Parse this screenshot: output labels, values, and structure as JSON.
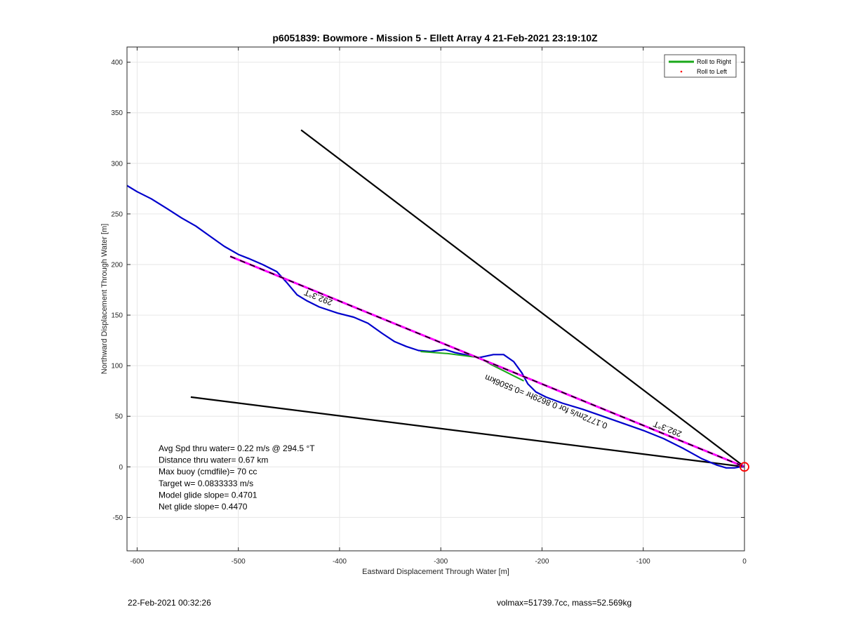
{
  "chart_data": {
    "type": "line",
    "title": "p6051839: Bowmore - Mission 5 - Ellett Array 4 21-Feb-2021 23:19:10Z",
    "xlabel": "Eastward Displacement Through Water [m]",
    "ylabel": "Northward Displacement Through Water [m]",
    "xlim": [
      -610,
      0
    ],
    "ylim": [
      -83,
      415
    ],
    "xticks": [
      -600,
      -500,
      -400,
      -300,
      -200,
      -100,
      0
    ],
    "yticks": [
      -50,
      0,
      50,
      100,
      150,
      200,
      250,
      300,
      350,
      400
    ],
    "grid": true,
    "legend_position": "top-right",
    "legend": [
      {
        "label": "Roll to Right",
        "color": "#1aa81a",
        "style": "line"
      },
      {
        "label": "Roll to Left",
        "color": "#ff0000",
        "style": "marker"
      }
    ],
    "series": [
      {
        "name": "Roll to Right",
        "color": "#1aa81a",
        "x": [
          -320,
          -293,
          -262,
          -250,
          -218
        ],
        "y": [
          114,
          112,
          108,
          101,
          85
        ]
      },
      {
        "color": "#0000cc",
        "x": [
          -610,
          -600,
          -586,
          -570,
          -556,
          -542,
          -528,
          -514,
          -500,
          -490,
          -476,
          -462,
          -452,
          -442,
          -432,
          -420,
          -402,
          -386,
          -372,
          -358,
          -346,
          -334,
          -322,
          -310,
          -296,
          -286,
          -272,
          -262,
          -248,
          -238,
          -228,
          -220,
          -214,
          -206,
          -196,
          -180,
          -160,
          -140,
          -120,
          -100,
          -80,
          -60,
          -42,
          -28,
          -18,
          -10,
          -4,
          0
        ],
        "y": [
          278,
          272,
          265,
          255,
          246,
          238,
          228,
          218,
          210,
          206,
          200,
          193,
          182,
          170,
          164,
          158,
          152,
          148,
          142,
          132,
          124,
          119,
          115,
          114,
          116,
          113,
          110,
          108,
          111,
          111,
          104,
          93,
          82,
          74,
          69,
          63,
          57,
          50,
          43,
          36,
          28,
          18,
          8,
          2,
          -1,
          -1,
          0,
          0
        ]
      }
    ],
    "reference_lines": [
      {
        "color": "#ff00ff",
        "dashed_black": true,
        "x": [
          -508,
          0
        ],
        "y": [
          208,
          0
        ]
      },
      {
        "color": "#000000",
        "x": [
          -438,
          0
        ],
        "y": [
          333,
          0
        ]
      },
      {
        "color": "#000000",
        "x": [
          -547,
          0
        ],
        "y": [
          69,
          0
        ]
      }
    ],
    "end_marker": {
      "x": 0,
      "y": 0,
      "color": "#ff0000"
    },
    "line_labels": [
      {
        "text": "292.3°T",
        "x": -420,
        "y": 170,
        "rotate": 22
      },
      {
        "text": "292.3°T",
        "x": -75,
        "y": 40,
        "rotate": 22
      },
      {
        "text": "0.1772m/s for 0.8629hr =0.5506km",
        "x": -195,
        "y": 67,
        "rotate": 22
      }
    ],
    "annotations": [
      "Avg Spd thru water=  0.22 m/s @ 294.5 °T",
      "Distance thru water=  0.67 km",
      "Max buoy (cmdfile)= 70 cc",
      "Target w= 0.0833333 m/s",
      "Model glide slope= 0.4701",
      "Net glide slope= 0.4470"
    ]
  },
  "footer": {
    "left": "22-Feb-2021 00:32:26",
    "right": "volmax=51739.7cc, mass=52.569kg"
  }
}
